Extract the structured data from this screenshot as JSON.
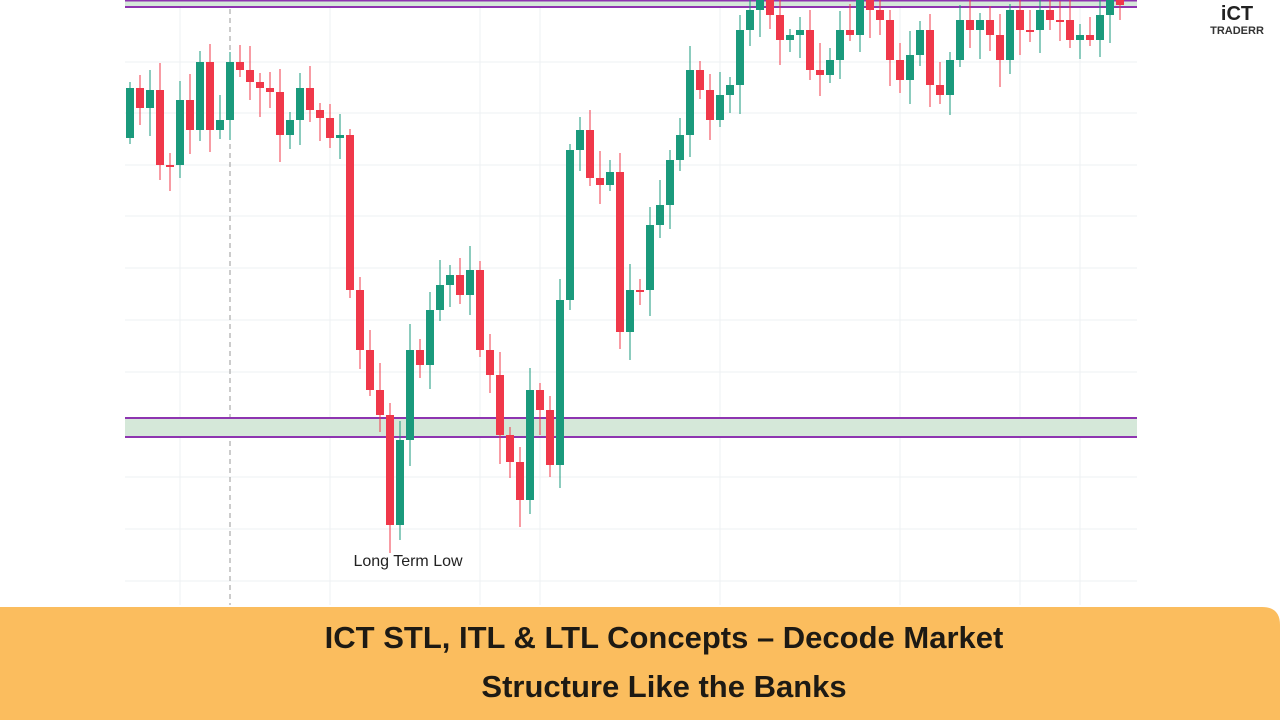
{
  "logo": {
    "brand": "iCT",
    "name": "TRADERR"
  },
  "chart": {
    "annotation": "Long Term Low"
  },
  "banner": {
    "title_lines": [
      "ICT STL, ITL & LTL Concepts – Decode Market",
      "Structure Like the Banks"
    ]
  }
}
